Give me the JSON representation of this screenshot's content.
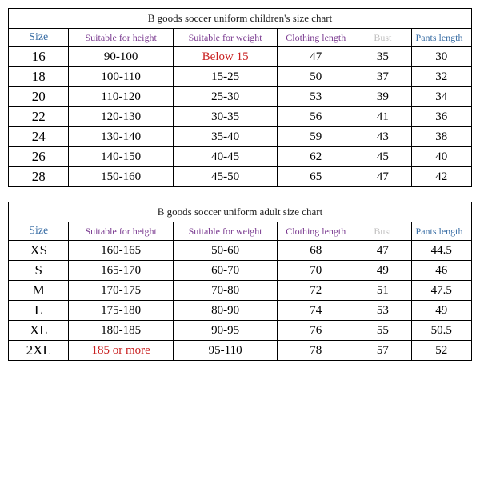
{
  "colors": {
    "border": "#000000",
    "background": "#ffffff",
    "text_body": "#222222",
    "hdr_purple": "#7a3a90",
    "hdr_blue": "#3a6ea5",
    "hdr_grey": "#c0bfbf",
    "red": "#c92020"
  },
  "children_table": {
    "title": "B goods soccer uniform children's size chart",
    "headers": {
      "size": "Size",
      "height": "Suitable for height",
      "weight": "Suitable for weight",
      "clen": "Clothing length",
      "bust": "Bust",
      "pants": "Pants length"
    },
    "rows": [
      {
        "size": "16",
        "height": "90-100",
        "weight": "Below 15",
        "weight_red": true,
        "clen": "47",
        "bust": "35",
        "pants": "30"
      },
      {
        "size": "18",
        "height": "100-110",
        "weight": "15-25",
        "clen": "50",
        "bust": "37",
        "pants": "32"
      },
      {
        "size": "20",
        "height": "110-120",
        "weight": "25-30",
        "clen": "53",
        "bust": "39",
        "pants": "34"
      },
      {
        "size": "22",
        "height": "120-130",
        "weight": "30-35",
        "clen": "56",
        "bust": "41",
        "pants": "36"
      },
      {
        "size": "24",
        "height": "130-140",
        "weight": "35-40",
        "clen": "59",
        "bust": "43",
        "pants": "38"
      },
      {
        "size": "26",
        "height": "140-150",
        "weight": "40-45",
        "clen": "62",
        "bust": "45",
        "pants": "40"
      },
      {
        "size": "28",
        "height": "150-160",
        "weight": "45-50",
        "clen": "65",
        "bust": "47",
        "pants": "42"
      }
    ]
  },
  "adult_table": {
    "title": "B goods soccer uniform adult size chart",
    "headers": {
      "size": "Size",
      "height": "Suitable for height",
      "weight": "Suitable for weight",
      "clen": "Clothing length",
      "bust": "Bust",
      "pants": "Pants length"
    },
    "rows": [
      {
        "size": "XS",
        "height": "160-165",
        "weight": "50-60",
        "clen": "68",
        "bust": "47",
        "pants": "44.5"
      },
      {
        "size": "S",
        "height": "165-170",
        "weight": "60-70",
        "clen": "70",
        "bust": "49",
        "pants": "46"
      },
      {
        "size": "M",
        "height": "170-175",
        "weight": "70-80",
        "clen": "72",
        "bust": "51",
        "pants": "47.5"
      },
      {
        "size": "L",
        "height": "175-180",
        "weight": "80-90",
        "clen": "74",
        "bust": "53",
        "pants": "49"
      },
      {
        "size": "XL",
        "height": "180-185",
        "weight": "90-95",
        "clen": "76",
        "bust": "55",
        "pants": "50.5"
      },
      {
        "size": "2XL",
        "height": "185 or more",
        "height_red": true,
        "weight": "95-110",
        "clen": "78",
        "bust": "57",
        "pants": "52"
      }
    ]
  }
}
